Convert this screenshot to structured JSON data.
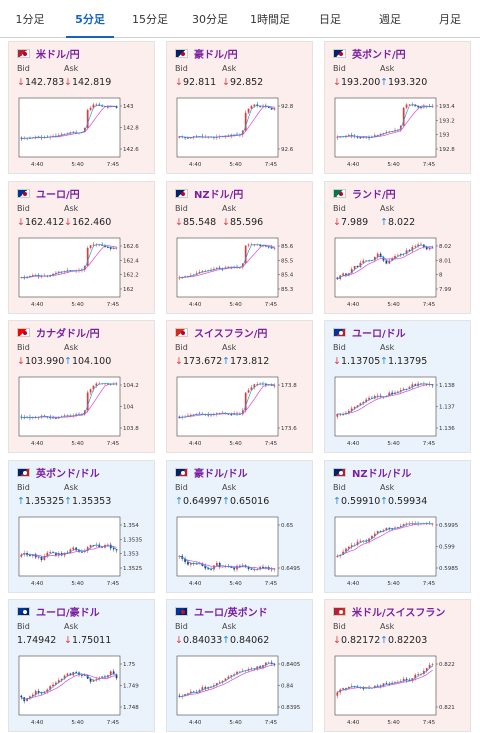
{
  "tabs": [
    "1分足",
    "5分足",
    "15分足",
    "30分足",
    "1時間足",
    "日足",
    "週足",
    "月足"
  ],
  "active_tab": 1,
  "bid_label": "Bid",
  "ask_label": "Ask",
  "x_ticks": [
    "4:40",
    "5:40",
    "7:45"
  ],
  "colors": {
    "up": "#e53935",
    "down": "#1e3a8a",
    "ma": "#d84bd8",
    "ma2": "#1da1e0",
    "arrow_up": "#1e88e5",
    "arrow_down": "#e53935"
  },
  "cards": [
    {
      "pair": "米ドル/円",
      "flag": "us-jp",
      "bg": "red",
      "bid_dir": "down",
      "bid": "142.783",
      "ask_dir": "down",
      "ask": "142.819",
      "y_ticks": [
        "143",
        "142.8",
        "142.6"
      ],
      "pattern": "jump",
      "drift": 0.4
    },
    {
      "pair": "豪ドル/円",
      "flag": "au-jp",
      "bg": "red",
      "bid_dir": "down",
      "bid": "92.811",
      "ask_dir": "down",
      "ask": "92.852",
      "y_ticks": [
        "92.8",
        "92.6"
      ],
      "pattern": "jump",
      "drift": 0.3
    },
    {
      "pair": "英ポンド/円",
      "flag": "gb-jp",
      "bg": "red",
      "bid_dir": "down",
      "bid": "193.200",
      "ask_dir": "up",
      "ask": "193.320",
      "y_ticks": [
        "193.4",
        "193.2",
        "193",
        "192.8"
      ],
      "pattern": "jump",
      "drift": 0.35
    },
    {
      "pair": "ユーロ/円",
      "flag": "eu-jp",
      "bg": "red",
      "bid_dir": "down",
      "bid": "162.412",
      "ask_dir": "down",
      "ask": "162.460",
      "y_ticks": [
        "162.6",
        "162.4",
        "162.2",
        "162"
      ],
      "pattern": "jump",
      "drift": 0.3
    },
    {
      "pair": "NZドル/円",
      "flag": "nz-jp",
      "bg": "red",
      "bid_dir": "down",
      "bid": "85.548",
      "ask_dir": "down",
      "ask": "85.596",
      "y_ticks": [
        "85.6",
        "85.5",
        "85.4",
        "85.3"
      ],
      "pattern": "jump",
      "drift": 0.3
    },
    {
      "pair": "ランド/円",
      "flag": "za-jp",
      "bg": "red",
      "bid_dir": "down",
      "bid": "7.989",
      "ask_dir": "up",
      "ask": "8.022",
      "y_ticks": [
        "8.02",
        "8.01",
        "8",
        "7.99"
      ],
      "pattern": "choppy",
      "drift": 0.2
    },
    {
      "pair": "カナダドル/円",
      "flag": "ca-jp",
      "bg": "red",
      "bid_dir": "down",
      "bid": "103.990",
      "ask_dir": "up",
      "ask": "104.100",
      "y_ticks": [
        "104.2",
        "104",
        "103.8"
      ],
      "pattern": "jump",
      "drift": 0.3
    },
    {
      "pair": "スイスフラン/円",
      "flag": "ch-jp",
      "bg": "red",
      "bid_dir": "down",
      "bid": "173.672",
      "ask_dir": "up",
      "ask": "173.812",
      "y_ticks": [
        "173.8",
        "173.6"
      ],
      "pattern": "jump",
      "drift": 0.3
    },
    {
      "pair": "ユーロ/ドル",
      "flag": "eu-us",
      "bg": "blue",
      "bid_dir": "down",
      "bid": "1.13705",
      "ask_dir": "up",
      "ask": "1.13795",
      "y_ticks": [
        "1.138",
        "1.137",
        "1.136"
      ],
      "pattern": "rise",
      "drift": 0.5
    },
    {
      "pair": "英ポンド/ドル",
      "flag": "gb-us",
      "bg": "blue",
      "bid_dir": "up",
      "bid": "1.35325",
      "ask_dir": "up",
      "ask": "1.35353",
      "y_ticks": [
        "1.354",
        "1.3535",
        "1.353",
        "1.3525"
      ],
      "pattern": "choppy",
      "drift": 0.1
    },
    {
      "pair": "豪ドル/ドル",
      "flag": "au-us",
      "bg": "blue",
      "bid_dir": "up",
      "bid": "0.64997",
      "ask_dir": "up",
      "ask": "0.65016",
      "y_ticks": [
        "0.65",
        "0.6495"
      ],
      "pattern": "choppy",
      "drift": 0.25
    },
    {
      "pair": "NZドル/ドル",
      "flag": "nz-us",
      "bg": "blue",
      "bid_dir": "up",
      "bid": "0.59910",
      "ask_dir": "up",
      "ask": "0.59934",
      "y_ticks": [
        "0.5995",
        "0.599",
        "0.5985"
      ],
      "pattern": "rise",
      "drift": 0.35
    },
    {
      "pair": "ユーロ/豪ドル",
      "flag": "eu-au",
      "bg": "blue",
      "bid_dir": "none",
      "bid": "1.74942",
      "ask_dir": "down",
      "ask": "1.75011",
      "y_ticks": [
        "1.75",
        "1.749",
        "1.748"
      ],
      "pattern": "choppy",
      "drift": 0.2
    },
    {
      "pair": "ユーロ/英ポンド",
      "flag": "eu-gb",
      "bg": "blue",
      "bid_dir": "down",
      "bid": "0.84033",
      "ask_dir": "up",
      "ask": "0.84062",
      "y_ticks": [
        "0.8405",
        "0.84",
        "0.8395"
      ],
      "pattern": "rise",
      "drift": 0.45
    },
    {
      "pair": "米ドル/スイスフラン",
      "flag": "us-ch",
      "bg": "red",
      "bid_dir": "down",
      "bid": "0.82172",
      "ask_dir": "up",
      "ask": "0.82203",
      "y_ticks": [
        "0.822",
        "0.821"
      ],
      "pattern": "rise",
      "drift": 0.4
    }
  ]
}
